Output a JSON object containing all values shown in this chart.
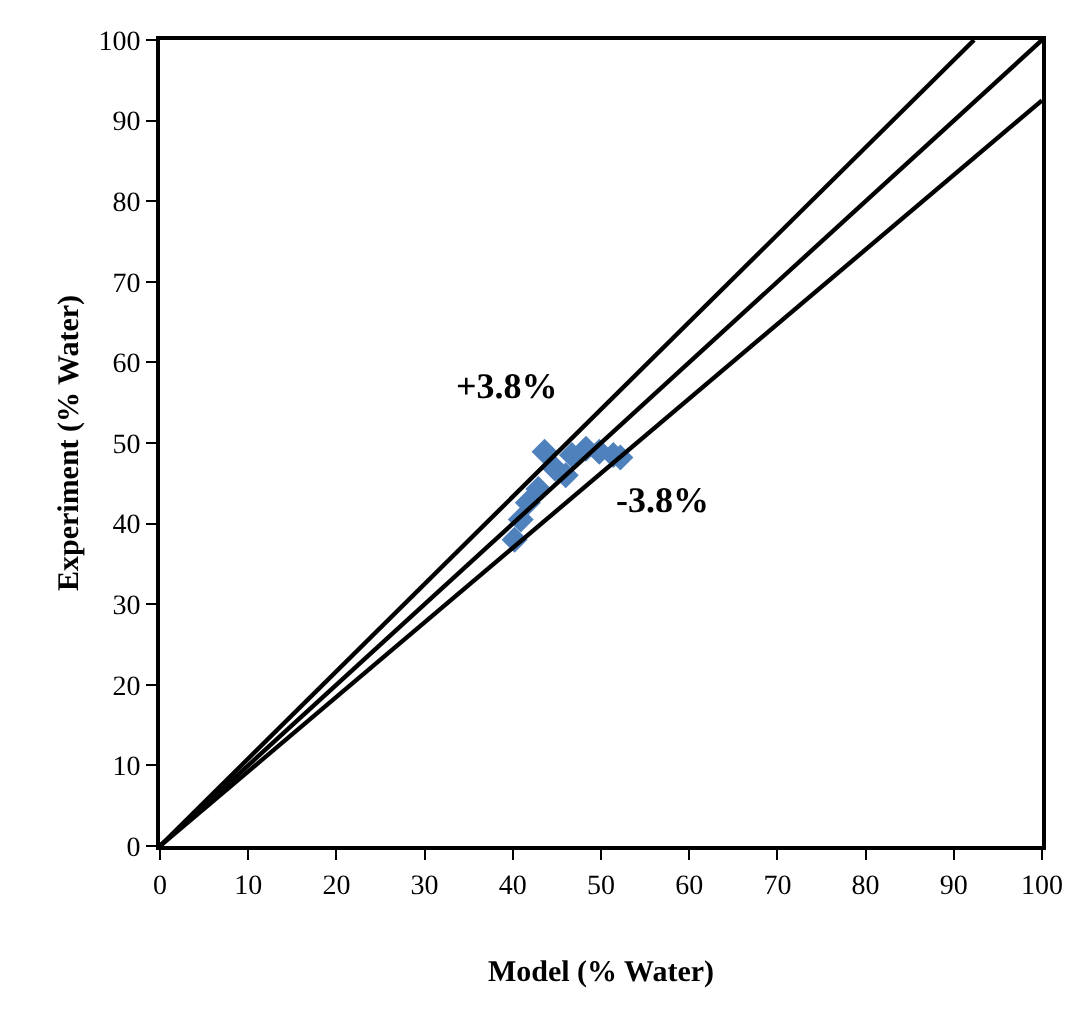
{
  "chart_data": {
    "type": "scatter",
    "xlabel": "Model (% Water)",
    "ylabel": "Experiment (% Water)",
    "xlim": [
      0,
      100
    ],
    "xticks": [
      0,
      10,
      20,
      30,
      40,
      50,
      60,
      70,
      80,
      90,
      100
    ],
    "ylim": [
      0,
      100
    ],
    "yticks": [
      0,
      10,
      20,
      30,
      40,
      50,
      60,
      70,
      80,
      90,
      100
    ],
    "grid": false,
    "legend": false,
    "series": [
      {
        "marker": "diamond",
        "color": "#4f81bd",
        "x": [
          40.2,
          40.9,
          41.7,
          42.9,
          43.6,
          44.8,
          46.0,
          46.7,
          48.3,
          49.8,
          51.4,
          52.2
        ],
        "values": [
          38.0,
          40.5,
          42.6,
          44.3,
          48.9,
          46.8,
          46.0,
          48.5,
          49.3,
          48.9,
          48.5,
          48.2
        ]
      },
      {
        "type": "line",
        "color": "#000000",
        "x": [
          0,
          92.3
        ],
        "values": [
          0,
          100
        ]
      },
      {
        "type": "line",
        "color": "#000000",
        "x": [
          0,
          100
        ],
        "values": [
          0,
          100
        ]
      },
      {
        "type": "line",
        "color": "#000000",
        "x": [
          0,
          100
        ],
        "values": [
          0,
          92.5
        ]
      }
    ],
    "annotations": [
      "+3.8%",
      "-3.8%"
    ]
  }
}
